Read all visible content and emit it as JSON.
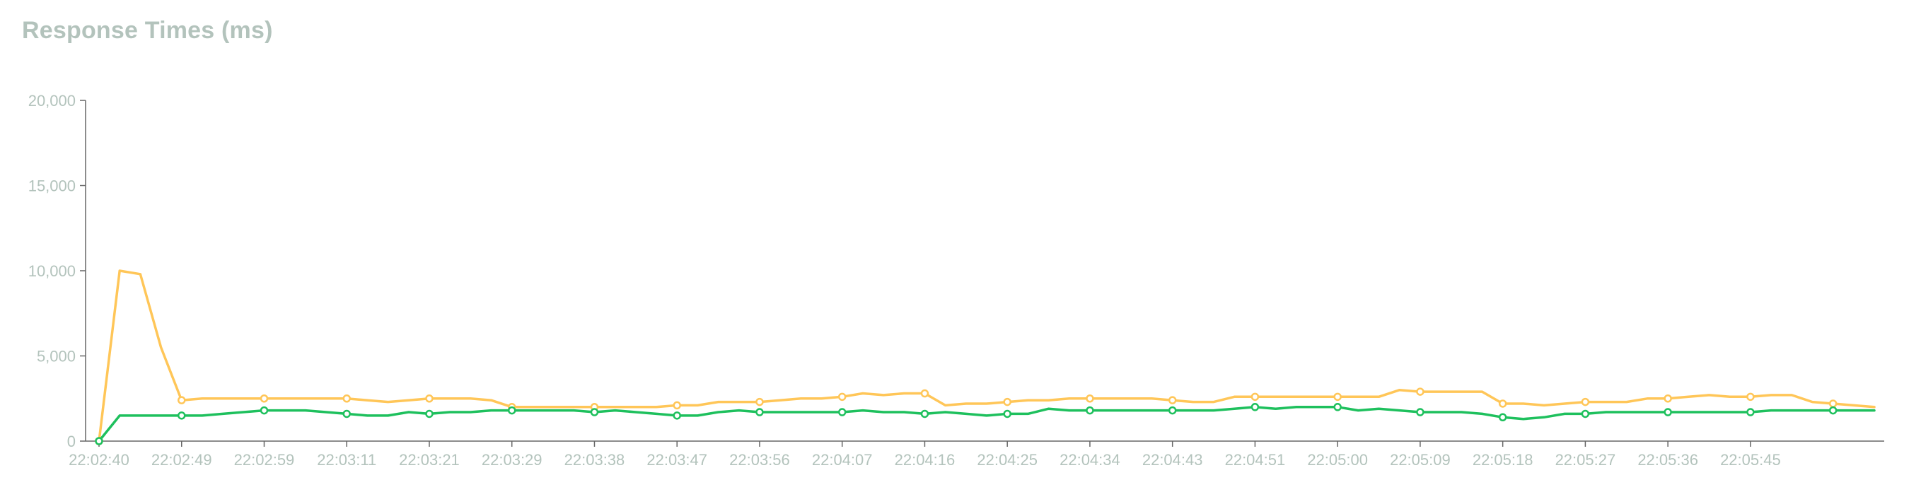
{
  "chart_data": {
    "type": "line",
    "title": "Response Times (ms)",
    "xlabel": "",
    "ylabel": "",
    "ylim": [
      0,
      20000
    ],
    "y_ticks": [
      "0",
      "5,000",
      "10,000",
      "15,000",
      "20,000"
    ],
    "y_tick_values": [
      0,
      5000,
      10000,
      15000,
      20000
    ],
    "x_tick_labels": [
      "22:02:40",
      "22:02:49",
      "22:02:59",
      "22:03:11",
      "22:03:21",
      "22:03:29",
      "22:03:38",
      "22:03:47",
      "22:03:56",
      "22:04:07",
      "22:04:16",
      "22:04:25",
      "22:04:34",
      "22:04:43",
      "22:04:51",
      "22:05:00",
      "22:05:09",
      "22:05:18",
      "22:05:27",
      "22:05:36",
      "22:05:45"
    ],
    "x_tick_every": 4,
    "marker_every": 4,
    "grid": false,
    "legend": "none",
    "series": [
      {
        "color": "#ffc658",
        "values": [
          0,
          10000,
          9800,
          5500,
          2400,
          2500,
          2500,
          2500,
          2500,
          2500,
          2500,
          2500,
          2500,
          2400,
          2300,
          2400,
          2500,
          2500,
          2500,
          2400,
          2000,
          2000,
          2000,
          2000,
          2000,
          2000,
          2000,
          2000,
          2100,
          2100,
          2300,
          2300,
          2300,
          2400,
          2500,
          2500,
          2600,
          2800,
          2700,
          2800,
          2800,
          2100,
          2200,
          2200,
          2300,
          2400,
          2400,
          2500,
          2500,
          2500,
          2500,
          2500,
          2400,
          2300,
          2300,
          2600,
          2600,
          2600,
          2600,
          2600,
          2600,
          2600,
          2600,
          3000,
          2900,
          2900,
          2900,
          2900,
          2200,
          2200,
          2100,
          2200,
          2300,
          2300,
          2300,
          2500,
          2500,
          2600,
          2700,
          2600,
          2600,
          2700,
          2700,
          2300,
          2200,
          2100,
          2000
        ]
      },
      {
        "color": "#1ec05d",
        "values": [
          0,
          1500,
          1500,
          1500,
          1500,
          1500,
          1600,
          1700,
          1800,
          1800,
          1800,
          1700,
          1600,
          1500,
          1500,
          1700,
          1600,
          1700,
          1700,
          1800,
          1800,
          1800,
          1800,
          1800,
          1700,
          1800,
          1700,
          1600,
          1500,
          1500,
          1700,
          1800,
          1700,
          1700,
          1700,
          1700,
          1700,
          1800,
          1700,
          1700,
          1600,
          1700,
          1600,
          1500,
          1600,
          1600,
          1900,
          1800,
          1800,
          1800,
          1800,
          1800,
          1800,
          1800,
          1800,
          1900,
          2000,
          1900,
          2000,
          2000,
          2000,
          1800,
          1900,
          1800,
          1700,
          1700,
          1700,
          1600,
          1400,
          1300,
          1400,
          1600,
          1600,
          1700,
          1700,
          1700,
          1700,
          1700,
          1700,
          1700,
          1700,
          1800,
          1800,
          1800,
          1800,
          1800,
          1800
        ]
      }
    ]
  }
}
